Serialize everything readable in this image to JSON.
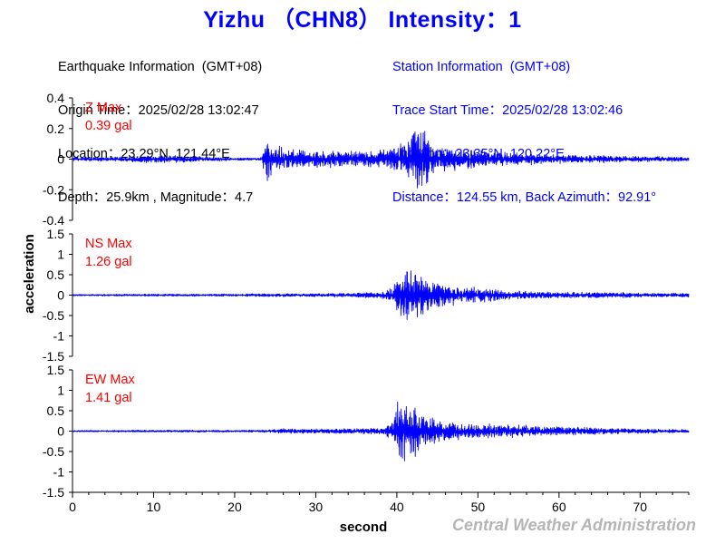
{
  "header": {
    "title": "Yizhu （CHN8） Intensity：1"
  },
  "earthquake_info": {
    "heading": "Earthquake Information  (GMT+08)",
    "origin_time": "Origin Time：2025/02/28 13:02:47",
    "location": "Location：23.29°N, 121.44°E",
    "depth_magnitude": "Depth：25.9km , Magnitude：4.7"
  },
  "station_info": {
    "heading": "Station Information  (GMT+08)",
    "trace_start": "Trace Start Time：2025/02/28 13:02:46",
    "location": "Location：23.35°N, 120.22°E",
    "distance": "Distance：124.55 km, Back Azimuth：92.91°"
  },
  "credit": "Central Weather Administration",
  "chart_data": {
    "type": "line",
    "xlabel": "second",
    "ylabel": "acceleration",
    "xlim": [
      0,
      76
    ],
    "xticks": [
      0,
      10,
      20,
      30,
      40,
      50,
      60,
      70
    ],
    "grid": false,
    "line_color": "#0000ff",
    "panels": [
      {
        "name": "Z",
        "max_label": "Z Max",
        "max_value": "0.39 gal",
        "peak": 0.39,
        "ylim": [
          -0.4,
          0.4
        ],
        "yticks": [
          -0.4,
          -0.2,
          0,
          0.2,
          0.4
        ],
        "ytick_labels": [
          "-0.4",
          "-0.2",
          "0",
          "0.2",
          "0.4"
        ],
        "envelope": [
          [
            0,
            0.02
          ],
          [
            8,
            0.03
          ],
          [
            10,
            0.045
          ],
          [
            15,
            0.03
          ],
          [
            20,
            0.015
          ],
          [
            23.3,
            0.015
          ],
          [
            23.9,
            0.3
          ],
          [
            24.6,
            0.15
          ],
          [
            27,
            0.1
          ],
          [
            30,
            0.09
          ],
          [
            33,
            0.09
          ],
          [
            36,
            0.08
          ],
          [
            39,
            0.1
          ],
          [
            40.5,
            0.16
          ],
          [
            41.5,
            0.26
          ],
          [
            43,
            0.36
          ],
          [
            45,
            0.14
          ],
          [
            48,
            0.11
          ],
          [
            52,
            0.08
          ],
          [
            56,
            0.06
          ],
          [
            60,
            0.045
          ],
          [
            65,
            0.04
          ],
          [
            70,
            0.03
          ],
          [
            76,
            0.025
          ]
        ]
      },
      {
        "name": "NS",
        "max_label": "NS Max",
        "max_value": "1.26 gal",
        "peak": 1.26,
        "ylim": [
          -1.5,
          1.5
        ],
        "yticks": [
          -1.5,
          -1,
          -0.5,
          0,
          0.5,
          1,
          1.5
        ],
        "ytick_labels": [
          "-1.5",
          "-1",
          "-0.5",
          "0",
          "0.5",
          "1",
          "1.5"
        ],
        "envelope": [
          [
            0,
            0.03
          ],
          [
            10,
            0.04
          ],
          [
            20,
            0.05
          ],
          [
            25,
            0.06
          ],
          [
            30,
            0.07
          ],
          [
            35,
            0.09
          ],
          [
            38,
            0.12
          ],
          [
            39.5,
            0.3
          ],
          [
            40.4,
            0.9
          ],
          [
            41,
            1.1
          ],
          [
            42,
            1.2
          ],
          [
            43.5,
            0.7
          ],
          [
            45,
            0.45
          ],
          [
            48,
            0.35
          ],
          [
            50,
            0.3
          ],
          [
            54,
            0.2
          ],
          [
            58,
            0.14
          ],
          [
            63,
            0.12
          ],
          [
            70,
            0.09
          ],
          [
            76,
            0.08
          ]
        ]
      },
      {
        "name": "EW",
        "max_label": "EW Max",
        "max_value": "1.41 gal",
        "peak": 1.41,
        "ylim": [
          -1.5,
          1.5
        ],
        "yticks": [
          -1.5,
          -1,
          -0.5,
          0,
          0.5,
          1,
          1.5
        ],
        "ytick_labels": [
          "-1.5",
          "-1",
          "-0.5",
          "0",
          "0.5",
          "1",
          "1.5"
        ],
        "envelope": [
          [
            0,
            0.03
          ],
          [
            10,
            0.04
          ],
          [
            20,
            0.04
          ],
          [
            24,
            0.05
          ],
          [
            25.5,
            0.1
          ],
          [
            30,
            0.09
          ],
          [
            35,
            0.1
          ],
          [
            38.5,
            0.12
          ],
          [
            39.6,
            0.5
          ],
          [
            40.3,
            1.35
          ],
          [
            41,
            1.2
          ],
          [
            42,
            1.1
          ],
          [
            43.5,
            0.6
          ],
          [
            46,
            0.4
          ],
          [
            50,
            0.3
          ],
          [
            55,
            0.25
          ],
          [
            60,
            0.18
          ],
          [
            65,
            0.12
          ],
          [
            70,
            0.09
          ],
          [
            76,
            0.07
          ]
        ]
      }
    ]
  }
}
